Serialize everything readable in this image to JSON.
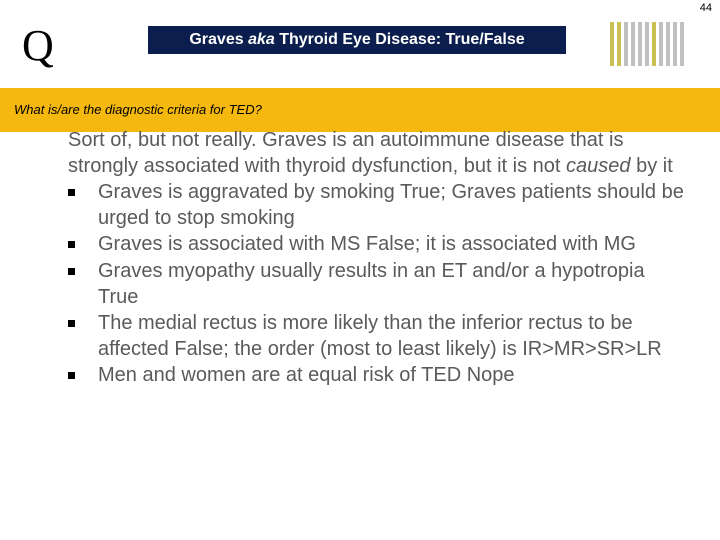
{
  "page_number": "44",
  "q_letter": "Q",
  "title_prefix": "Graves ",
  "title_aka": "aka",
  "title_suffix": " Thyroid Eye Disease: True/False",
  "question_text": "What is/are the diagnostic criteria for TED?",
  "stripe_colors": [
    "#c9c054",
    "#c9c054",
    "#c0c0c0",
    "#c0c0c0",
    "#c0c0c0",
    "#c0c0c0",
    "#c9c054",
    "#c0c0c0",
    "#c0c0c0",
    "#c0c0c0",
    "#c0c0c0"
  ],
  "partial_line_a": "Sort of, but not really. Graves is an autoimmune disease that is strongly associated with thyroid dysfunction, but it is not ",
  "partial_line_caused": "caused",
  "partial_line_b": " by it",
  "items": [
    "Graves is aggravated by smoking  True; Graves patients should be urged to stop smoking",
    "Graves is associated with MS  False; it is associated with MG",
    "Graves myopathy usually results in an ET and/or a hypotropia  True",
    "The medial rectus is more likely than the inferior rectus to be affected  False; the order (most to least likely) is IR>MR>SR>LR",
    "Men and women are at equal risk of TED  Nope"
  ],
  "colors": {
    "title_bg": "#0b1e4d",
    "question_bg": "#f5b80f",
    "body_text": "#5a5a5a"
  }
}
